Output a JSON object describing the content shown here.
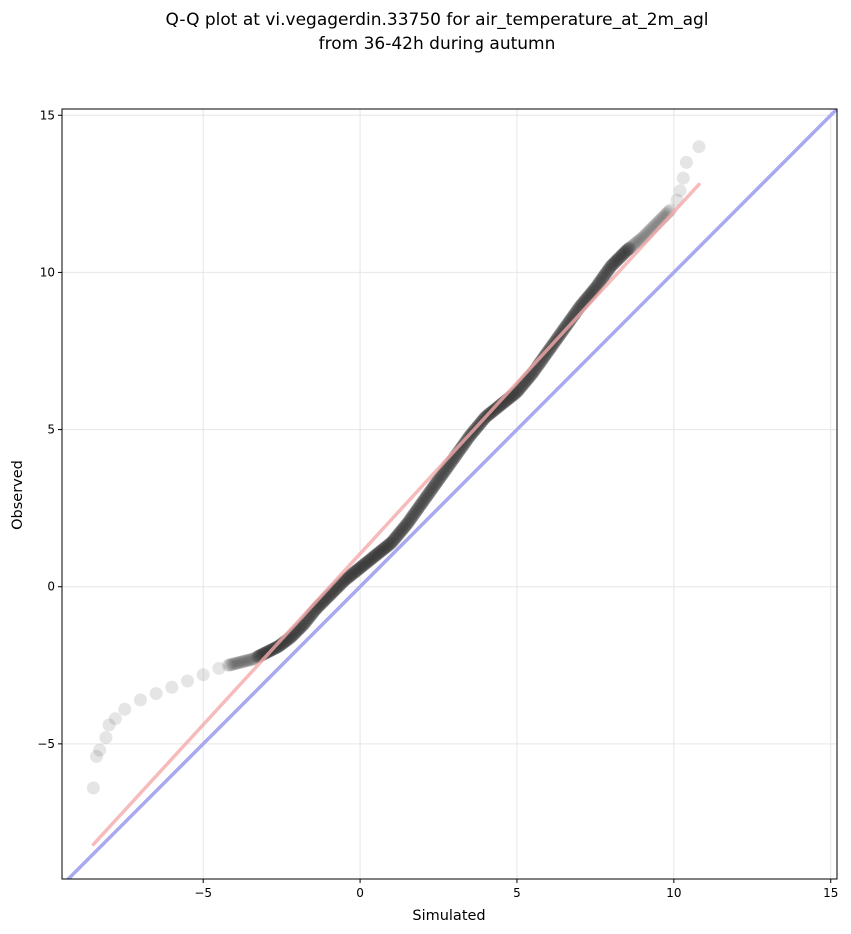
{
  "chart_data": {
    "type": "scatter",
    "title_lines": [
      "Q-Q plot at vi.vegagerdin.33750 for air_temperature_at_2m_agl",
      "from 36-42h during autumn"
    ],
    "xlabel": "Simulated",
    "ylabel": "Observed",
    "xlim": [
      -9.5,
      15.2
    ],
    "ylim": [
      -9.3,
      15.2
    ],
    "xticks": [
      -5,
      0,
      5,
      10,
      15
    ],
    "yticks": [
      -5,
      0,
      5,
      10,
      15
    ],
    "xtick_labels": [
      "−5",
      "0",
      "5",
      "10",
      "15"
    ],
    "ytick_labels": [
      "−5",
      "0",
      "5",
      "10",
      "15"
    ],
    "grid": true,
    "legend": "none",
    "identity_line": {
      "x": [
        -9.5,
        15.2
      ],
      "y": [
        -9.5,
        15.2
      ],
      "color": "#a9a9f0"
    },
    "fit_line": {
      "x": [
        -8.5,
        10.8
      ],
      "y": [
        -8.2,
        12.8
      ],
      "color": "#f4aaaa"
    },
    "point_color": "#333333",
    "anchors": {
      "x": [
        -8.5,
        -8.4,
        -8.3,
        -8.1,
        -8.0,
        -7.8,
        -7.5,
        -7.0,
        -6.5,
        -6.0,
        -5.5,
        -5.0,
        -4.5,
        -4.2,
        -3.8,
        -3.4,
        -3.0,
        -2.6,
        -2.2,
        -1.8,
        -1.4,
        -1.0,
        -0.5,
        0.0,
        0.5,
        1.0,
        1.5,
        2.0,
        2.5,
        3.0,
        3.5,
        4.0,
        4.5,
        5.0,
        5.5,
        6.0,
        6.5,
        7.0,
        7.5,
        8.0,
        8.5,
        9.0,
        9.5,
        9.9,
        10.1,
        10.2,
        10.3,
        10.4,
        10.8
      ],
      "y": [
        -6.4,
        -5.4,
        -5.2,
        -4.8,
        -4.4,
        -4.2,
        -3.9,
        -3.6,
        -3.4,
        -3.2,
        -3.0,
        -2.8,
        -2.6,
        -2.5,
        -2.4,
        -2.3,
        -2.1,
        -1.9,
        -1.6,
        -1.2,
        -0.7,
        -0.3,
        0.2,
        0.6,
        1.0,
        1.4,
        2.0,
        2.7,
        3.4,
        4.1,
        4.8,
        5.4,
        5.8,
        6.2,
        6.8,
        7.5,
        8.2,
        8.9,
        9.5,
        10.2,
        10.7,
        11.1,
        11.6,
        12.0,
        12.3,
        12.6,
        13.0,
        13.5,
        14.0
      ]
    }
  }
}
